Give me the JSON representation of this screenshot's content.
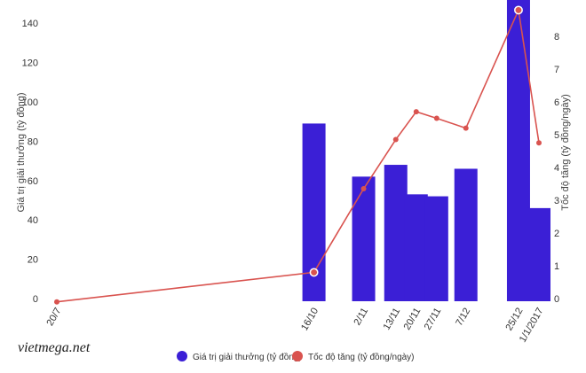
{
  "chart_data": {
    "type": "bar",
    "categories": [
      "20/7",
      "16/10",
      "2/11",
      "13/11",
      "20/11",
      "27/11",
      "7/12",
      "25/12",
      "1/1/2017"
    ],
    "category_days": [
      0,
      88,
      105,
      116,
      123,
      130,
      140,
      158,
      165
    ],
    "series": [
      {
        "name": "Giá trị giải thưởng (tỷ đồng)",
        "type": "bar",
        "axis": "left",
        "values": [
          null,
          89,
          62,
          68,
          53,
          52,
          66,
          156,
          46
        ],
        "color": "#3b1fd6"
      },
      {
        "name": "Tốc độ tăng (tỷ đồng/ngày)",
        "type": "line",
        "axis": "right",
        "values": [
          -0.1,
          0.8,
          3.35,
          4.85,
          5.7,
          5.5,
          5.2,
          8.8,
          4.75
        ],
        "color": "#d9534f"
      }
    ],
    "ylabel": "Giá trị giải thưởng (tỷ đồng)",
    "y2label": "Tốc độ tăng (tỷ đồng/ngày)",
    "ylim": [
      0,
      150
    ],
    "y2lim": [
      0,
      9
    ],
    "yticks": [
      0,
      20,
      40,
      60,
      80,
      100,
      120,
      140
    ],
    "y2ticks": [
      0,
      1,
      2,
      3,
      4,
      5,
      6,
      7,
      8
    ],
    "grid": false,
    "legend": "bottom",
    "highlighted_points": [
      "16/10",
      "25/12"
    ]
  },
  "watermark": "vietmega.net"
}
